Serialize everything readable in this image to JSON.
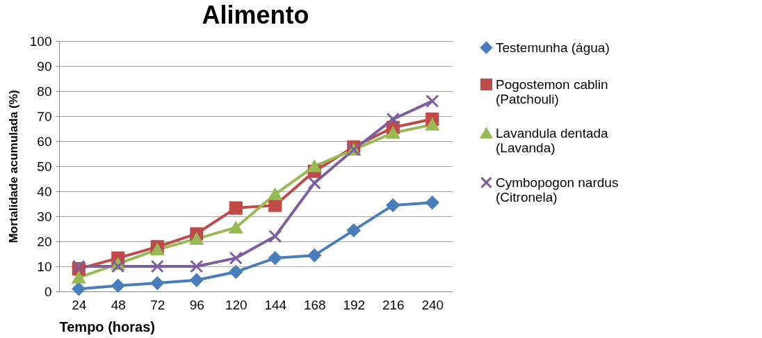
{
  "chart_data": {
    "type": "line",
    "title": "Alimento",
    "xlabel": "Tempo (horas)",
    "ylabel": "Mortalidade acumulada (%)",
    "categories": [
      "24",
      "48",
      "72",
      "96",
      "120",
      "144",
      "168",
      "192",
      "216",
      "240"
    ],
    "ylim": [
      0,
      100
    ],
    "yticks": [
      0,
      10,
      20,
      30,
      40,
      50,
      60,
      70,
      80,
      90,
      100
    ],
    "grid": "y",
    "legend": "right",
    "series": [
      {
        "name": "Testemunha (água)",
        "color": "#4a7ebb",
        "marker": "diamond",
        "values": [
          1,
          2.3,
          3.3,
          4.5,
          7.8,
          13.3,
          14.4,
          24.4,
          34.4,
          35.5
        ]
      },
      {
        "name": "Pogostemon cablin\n(Patchouli)",
        "color": "#be4b48",
        "marker": "square",
        "values": [
          9,
          13.3,
          17.8,
          23,
          33.3,
          34.4,
          48,
          57.7,
          65.5,
          68.8
        ]
      },
      {
        "name": "Lavandula dentada\n(Lavanda)",
        "color": "#98b954",
        "marker": "triangle",
        "values": [
          5.5,
          11,
          16.7,
          21,
          25.5,
          38.8,
          50,
          56.6,
          63.3,
          66.6
        ]
      },
      {
        "name": "Cymbopogon nardus\n(Citronela)",
        "color": "#7d5fa0",
        "marker": "cross",
        "values": [
          10,
          10,
          10,
          10,
          13.3,
          22,
          43.3,
          56.6,
          68.8,
          76
        ]
      }
    ]
  }
}
